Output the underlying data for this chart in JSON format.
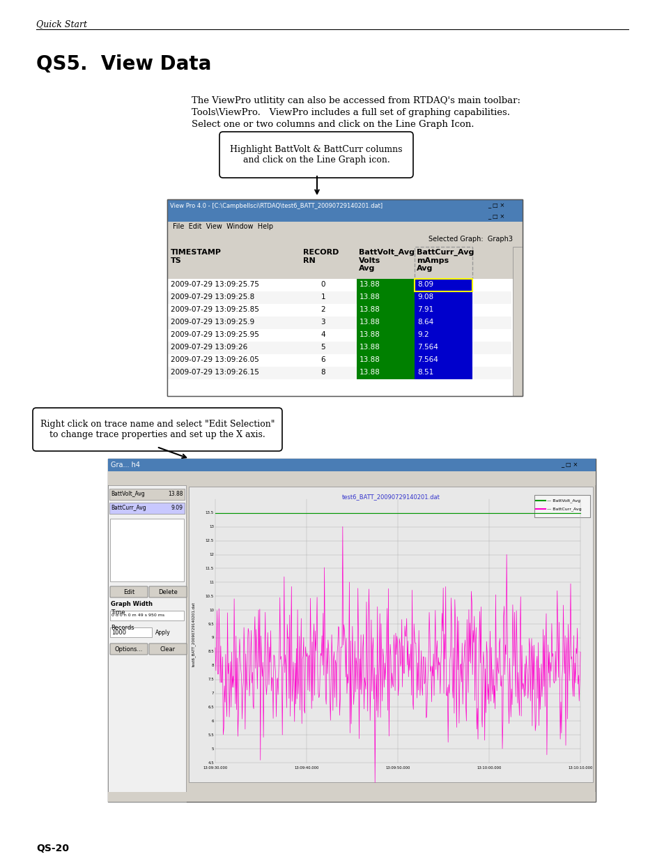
{
  "page_label": "Quick Start",
  "title": "QS5.  View Data",
  "body_text_1": "The ViewPro utlitity can also be accessed from RTDAQ's main toolbar:",
  "body_text_2": "Tools\\ViewPro.   ViewPro includes a full set of graphing capabilities.",
  "body_text_3": "Select one or two columns and click on the Line Graph Icon.",
  "callout1_text": "Highlight BattVolt & BattCurr columns\nand click on the Line Graph icon.",
  "callout2_text": "Right click on trace name and select \"Edit Selection\"\nto change trace properties and set up the X axis.",
  "page_number": "QS-20",
  "bg_color": "#ffffff",
  "table_header_bg": "#d4d0c8",
  "table_green_bg": "#008000",
  "table_blue_bg": "#0000cc",
  "window_title1": "View Pro 4.0 - [C:\\Campbellsci\\RTDAQ\\test6_BATT_20090729140201.dat]",
  "window_title2": "Gra... h4",
  "menubar": "File  Edit  View  Window  Help",
  "selected_graph": "Graph3",
  "timestamps": [
    "2009-07-29 13:09:25.75",
    "2009-07-29 13:09:25.8",
    "2009-07-29 13:09:25.85",
    "2009-07-29 13:09:25.9",
    "2009-07-29 13:09:25.95",
    "2009-07-29 13:09:26",
    "2009-07-29 13:09:26.05",
    "2009-07-29 13:09:26.15"
  ],
  "records": [
    "0",
    "1",
    "2",
    "3",
    "4",
    "5",
    "6",
    "8"
  ],
  "batt_volts": [
    "13.88",
    "13.88",
    "13.88",
    "13.88",
    "13.88",
    "13.88",
    "13.88",
    "13.88"
  ],
  "batt_curr": [
    "8.09",
    "9.08",
    "7.91",
    "8.64",
    "9.2",
    "7.564",
    "7.564",
    "8.51"
  ],
  "graph_title": "test6_BATT_20090729140201.dat",
  "y_ticks": [
    4.5,
    5.0,
    5.5,
    6.0,
    6.5,
    7.0,
    7.5,
    8.0,
    8.5,
    9.0,
    9.5,
    10.0,
    10.5,
    11.0,
    11.5,
    12.0,
    12.5,
    13.0,
    13.5
  ],
  "x_tick_labels": [
    "13:09:30.000",
    "13:09:40.000",
    "13:09:50.000",
    "13:10:00.000",
    "13:10:10.000"
  ],
  "trace_names": [
    "BattVolt_Avg",
    "BattCurr_Avg"
  ],
  "trace_values": [
    "13.88",
    "9.09"
  ],
  "graph_width_text": "0 d 0 h 0 m 49 s 950 ms",
  "records_count": "1000"
}
